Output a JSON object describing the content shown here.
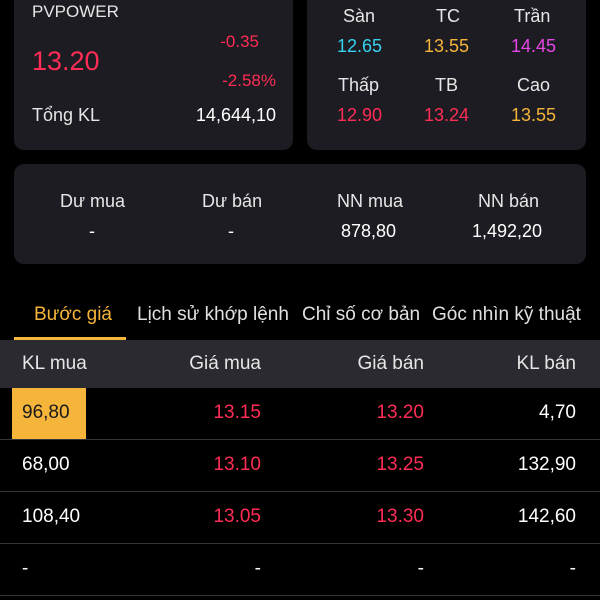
{
  "stock": {
    "symbol": "PVPOWER",
    "price": "13.20",
    "change": "-0.35",
    "change_pct": "-2.58%",
    "volume_label": "Tổng KL",
    "volume_value": "14,644,10"
  },
  "price_grid": {
    "san_label": "Sàn",
    "san_value": "12.65",
    "tc_label": "TC",
    "tc_value": "13.55",
    "tran_label": "Trần",
    "tran_value": "14.45",
    "thap_label": "Thấp",
    "thap_value": "12.90",
    "tb_label": "TB",
    "tb_value": "13.24",
    "cao_label": "Cao",
    "cao_value": "13.55"
  },
  "orders": {
    "du_mua_label": "Dư mua",
    "du_mua_value": "-",
    "du_ban_label": "Dư bán",
    "du_ban_value": "-",
    "nn_mua_label": "NN mua",
    "nn_mua_value": "878,80",
    "nn_ban_label": "NN bán",
    "nn_ban_value": "1,492,20"
  },
  "tabs": [
    {
      "label": "Bước giá"
    },
    {
      "label": "Lịch sử khớp lệnh"
    },
    {
      "label": "Chỉ số cơ bản"
    },
    {
      "label": "Góc nhìn kỹ thuật"
    }
  ],
  "table": {
    "headers": [
      "KL mua",
      "Giá mua",
      "Giá bán",
      "KL bán"
    ],
    "rows": [
      [
        "96,80",
        "13.15",
        "13.20",
        "4,70"
      ],
      [
        "68,00",
        "13.10",
        "13.25",
        "132,90"
      ],
      [
        "108,40",
        "13.05",
        "13.30",
        "142,60"
      ],
      [
        "-",
        "-",
        "-",
        "-"
      ]
    ]
  },
  "colors": {
    "down": "#ff2d55",
    "floor": "#36d2f0",
    "reference": "#f5b43a",
    "ceiling": "#e646e6",
    "accent": "#f5b43a"
  }
}
